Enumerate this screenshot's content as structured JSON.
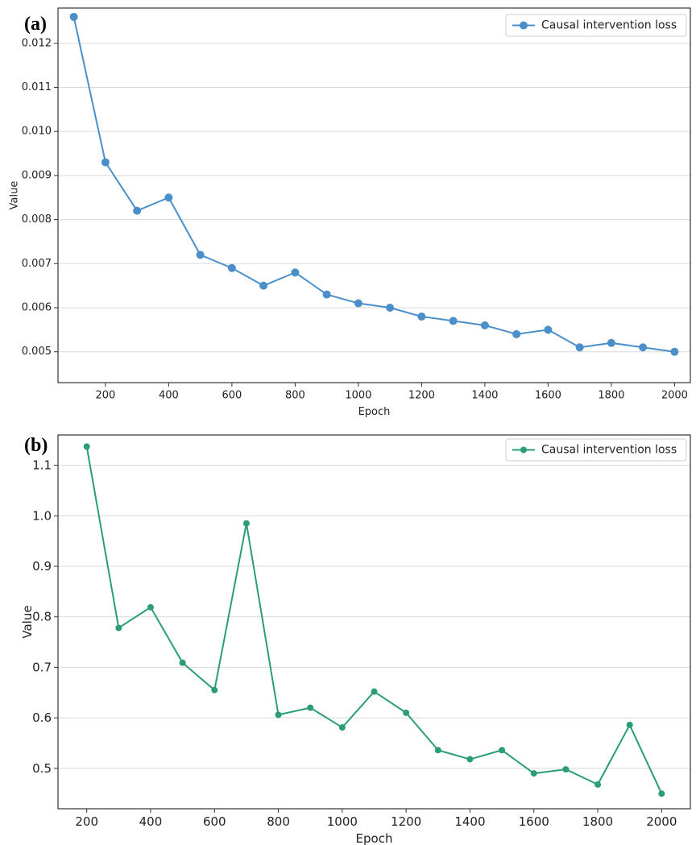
{
  "chart_data": [
    {
      "type": "line",
      "panel_label": "(a)",
      "title": "",
      "xlabel": "Epoch",
      "ylabel": "Value",
      "xlim": [
        50,
        2050
      ],
      "ylim": [
        0.0043,
        0.0128
      ],
      "xticks": [
        200,
        400,
        600,
        800,
        1000,
        1200,
        1400,
        1600,
        1800,
        2000
      ],
      "xtick_labels": [
        "200",
        "400",
        "600",
        "800",
        "1000",
        "1200",
        "1400",
        "1600",
        "1800",
        "2000"
      ],
      "yticks": [
        0.005,
        0.006,
        0.007,
        0.008,
        0.009,
        0.01,
        0.011,
        0.012
      ],
      "ytick_labels": [
        "0.005",
        "0.006",
        "0.007",
        "0.008",
        "0.009",
        "0.010",
        "0.011",
        "0.012"
      ],
      "grid": "horizontal",
      "legend_position": "top-right",
      "series": [
        {
          "name": "Causal intervention loss",
          "color": "#4a8fca",
          "x": [
            100,
            200,
            300,
            400,
            500,
            600,
            700,
            800,
            900,
            1000,
            1100,
            1200,
            1300,
            1400,
            1500,
            1600,
            1700,
            1800,
            1900,
            2000
          ],
          "values": [
            0.0126,
            0.0093,
            0.0082,
            0.0085,
            0.0072,
            0.0069,
            0.0065,
            0.0068,
            0.0063,
            0.0061,
            0.006,
            0.0058,
            0.0057,
            0.0056,
            0.0054,
            0.0055,
            0.0051,
            0.0052,
            0.0051,
            0.005
          ]
        }
      ]
    },
    {
      "type": "line",
      "panel_label": "(b)",
      "title": "",
      "xlabel": "Epoch",
      "ylabel": "Value",
      "xlim": [
        110,
        2090
      ],
      "ylim": [
        0.42,
        1.16
      ],
      "xticks": [
        200,
        400,
        600,
        800,
        1000,
        1200,
        1400,
        1600,
        1800,
        2000
      ],
      "xtick_labels": [
        "200",
        "400",
        "600",
        "800",
        "1000",
        "1200",
        "1400",
        "1600",
        "1800",
        "2000"
      ],
      "yticks": [
        0.5,
        0.6,
        0.7,
        0.8,
        0.9,
        1.0,
        1.1
      ],
      "ytick_labels": [
        "0.5",
        "0.6",
        "0.7",
        "0.8",
        "0.9",
        "1.0",
        "1.1"
      ],
      "grid": "horizontal",
      "legend_position": "top-right",
      "series": [
        {
          "name": "Causal intervention loss",
          "color": "#2a9d78",
          "x": [
            200,
            300,
            400,
            500,
            600,
            700,
            800,
            900,
            1000,
            1100,
            1200,
            1300,
            1400,
            1500,
            1600,
            1700,
            1800,
            1900,
            2000
          ],
          "values": [
            1.137,
            0.778,
            0.819,
            0.709,
            0.655,
            0.985,
            0.606,
            0.62,
            0.581,
            0.652,
            0.61,
            0.536,
            0.518,
            0.536,
            0.49,
            0.498,
            0.468,
            0.586,
            0.45
          ]
        }
      ]
    }
  ]
}
